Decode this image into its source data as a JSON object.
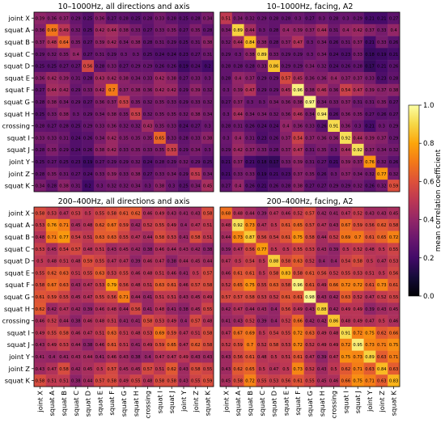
{
  "chart_data": {
    "type": "heatmap",
    "labels": [
      "joint X",
      "squat A",
      "squat B",
      "squat C",
      "squat D",
      "squat E",
      "squat F",
      "squat G",
      "squat H",
      "crossing",
      "squat I",
      "squat J",
      "joint Y",
      "joint Z",
      "squat K"
    ],
    "colorbar": {
      "label": "mean correlation coefficient",
      "range": [
        0.0,
        1.0
      ],
      "ticks": [
        "0.0",
        "0.2",
        "0.4",
        "0.6",
        "0.8",
        "1.0"
      ],
      "colormap": "inferno"
    },
    "panels": [
      {
        "title": "10–1000Hz, all directions and axis",
        "values": [
          [
            0.39,
            0.36,
            0.37,
            0.29,
            0.25,
            0.36,
            0.27,
            0.28,
            0.25,
            0.28,
            0.33,
            0.28,
            0.25,
            0.28,
            0.34
          ],
          [
            0.36,
            0.69,
            0.49,
            0.32,
            0.25,
            0.42,
            0.44,
            0.38,
            0.33,
            0.27,
            0.33,
            0.35,
            0.27,
            0.35,
            0.28
          ],
          [
            0.37,
            0.48,
            0.64,
            0.35,
            0.27,
            0.39,
            0.42,
            0.34,
            0.38,
            0.28,
            0.31,
            0.29,
            0.25,
            0.31,
            0.38
          ],
          [
            0.29,
            0.32,
            0.35,
            0.4,
            0.27,
            0.31,
            0.29,
            0.3,
            0.3,
            0.25,
            0.24,
            0.24,
            0.23,
            0.27,
            0.31
          ],
          [
            0.25,
            0.25,
            0.27,
            0.27,
            0.56,
            0.28,
            0.33,
            0.27,
            0.29,
            0.29,
            0.26,
            0.26,
            0.19,
            0.24,
            0.2
          ],
          [
            0.36,
            0.42,
            0.39,
            0.31,
            0.28,
            0.43,
            0.42,
            0.38,
            0.34,
            0.33,
            0.42,
            0.38,
            0.27,
            0.33,
            0.3
          ],
          [
            0.27,
            0.44,
            0.42,
            0.29,
            0.33,
            0.42,
            0.7,
            0.37,
            0.38,
            0.36,
            0.42,
            0.42,
            0.29,
            0.39,
            0.32
          ],
          [
            0.28,
            0.38,
            0.34,
            0.29,
            0.27,
            0.36,
            0.37,
            0.53,
            0.35,
            0.32,
            0.35,
            0.33,
            0.29,
            0.33,
            0.32
          ],
          [
            0.25,
            0.33,
            0.38,
            0.3,
            0.29,
            0.34,
            0.38,
            0.35,
            0.53,
            0.32,
            0.35,
            0.35,
            0.32,
            0.38,
            0.34
          ],
          [
            0.28,
            0.27,
            0.28,
            0.25,
            0.29,
            0.33,
            0.36,
            0.32,
            0.32,
            0.43,
            0.35,
            0.33,
            0.24,
            0.27,
            0.3
          ],
          [
            0.33,
            0.33,
            0.31,
            0.24,
            0.26,
            0.34,
            0.42,
            0.35,
            0.35,
            0.35,
            0.65,
            0.33,
            0.28,
            0.33,
            0.38
          ],
          [
            0.28,
            0.35,
            0.29,
            0.24,
            0.26,
            0.38,
            0.42,
            0.33,
            0.35,
            0.33,
            0.35,
            0.53,
            0.29,
            0.34,
            0.3
          ],
          [
            0.25,
            0.27,
            0.25,
            0.23,
            0.19,
            0.27,
            0.29,
            0.29,
            0.32,
            0.24,
            0.28,
            0.29,
            0.32,
            0.29,
            0.25
          ],
          [
            0.28,
            0.35,
            0.31,
            0.27,
            0.24,
            0.33,
            0.39,
            0.33,
            0.38,
            0.27,
            0.33,
            0.34,
            0.29,
            0.51,
            0.34
          ],
          [
            0.34,
            0.28,
            0.38,
            0.31,
            0.2,
            0.3,
            0.32,
            0.32,
            0.34,
            0.3,
            0.38,
            0.3,
            0.25,
            0.34,
            0.45
          ]
        ]
      },
      {
        "title": "10–1000Hz, facing, A2",
        "values": [
          [
            0.51,
            0.34,
            0.32,
            0.29,
            0.28,
            0.28,
            0.3,
            0.27,
            0.3,
            0.28,
            0.3,
            0.29,
            0.21,
            0.21,
            0.27
          ],
          [
            0.34,
            0.89,
            0.44,
            0.3,
            0.28,
            0.4,
            0.39,
            0.37,
            0.44,
            0.31,
            0.4,
            0.42,
            0.37,
            0.33,
            0.4
          ],
          [
            0.32,
            0.44,
            0.84,
            0.38,
            0.28,
            0.37,
            0.47,
            0.3,
            0.34,
            0.26,
            0.31,
            0.37,
            0.21,
            0.33,
            0.26
          ],
          [
            0.29,
            0.3,
            0.38,
            0.89,
            0.33,
            0.29,
            0.29,
            0.3,
            0.34,
            0.24,
            0.23,
            0.33,
            0.18,
            0.19,
            0.21
          ],
          [
            0.28,
            0.28,
            0.28,
            0.33,
            0.86,
            0.29,
            0.29,
            0.34,
            0.32,
            0.24,
            0.26,
            0.28,
            0.17,
            0.21,
            0.26
          ],
          [
            0.28,
            0.4,
            0.37,
            0.29,
            0.29,
            0.57,
            0.45,
            0.36,
            0.36,
            0.4,
            0.37,
            0.37,
            0.33,
            0.23,
            0.28
          ],
          [
            0.3,
            0.39,
            0.47,
            0.29,
            0.29,
            0.45,
            0.96,
            0.38,
            0.46,
            0.36,
            0.54,
            0.47,
            0.39,
            0.37,
            0.38
          ],
          [
            0.27,
            0.37,
            0.3,
            0.3,
            0.34,
            0.36,
            0.38,
            0.97,
            0.34,
            0.33,
            0.37,
            0.31,
            0.31,
            0.35,
            0.27
          ],
          [
            0.3,
            0.44,
            0.34,
            0.34,
            0.32,
            0.36,
            0.46,
            0.34,
            0.94,
            0.26,
            0.36,
            0.35,
            0.27,
            0.26,
            0.27
          ],
          [
            0.28,
            0.31,
            0.26,
            0.24,
            0.24,
            0.4,
            0.36,
            0.33,
            0.26,
            0.91,
            0.36,
            0.3,
            0.21,
            0.3,
            0.29
          ],
          [
            0.3,
            0.4,
            0.31,
            0.23,
            0.26,
            0.37,
            0.54,
            0.37,
            0.36,
            0.36,
            0.92,
            0.44,
            0.39,
            0.37,
            0.29
          ],
          [
            0.29,
            0.42,
            0.37,
            0.33,
            0.28,
            0.37,
            0.47,
            0.31,
            0.35,
            0.3,
            0.44,
            0.92,
            0.37,
            0.34,
            0.32
          ],
          [
            0.21,
            0.37,
            0.21,
            0.18,
            0.17,
            0.33,
            0.39,
            0.31,
            0.27,
            0.21,
            0.39,
            0.37,
            0.76,
            0.32,
            0.26
          ],
          [
            0.21,
            0.33,
            0.33,
            0.19,
            0.21,
            0.23,
            0.37,
            0.35,
            0.26,
            0.3,
            0.37,
            0.34,
            0.32,
            0.77,
            0.32
          ],
          [
            0.27,
            0.4,
            0.26,
            0.21,
            0.26,
            0.28,
            0.38,
            0.27,
            0.27,
            0.29,
            0.29,
            0.32,
            0.26,
            0.32,
            0.59
          ]
        ]
      },
      {
        "title": "200–400Hz, all directions and axis",
        "values": [
          [
            0.58,
            0.53,
            0.47,
            0.53,
            0.5,
            0.55,
            0.58,
            0.61,
            0.62,
            0.46,
            0.49,
            0.43,
            0.41,
            0.43,
            0.58
          ],
          [
            0.53,
            0.76,
            0.71,
            0.45,
            0.48,
            0.62,
            0.67,
            0.59,
            0.42,
            0.52,
            0.55,
            0.49,
            0.4,
            0.47,
            0.51
          ],
          [
            0.48,
            0.71,
            0.77,
            0.54,
            0.51,
            0.63,
            0.63,
            0.55,
            0.47,
            0.44,
            0.58,
            0.53,
            0.41,
            0.58,
            0.51
          ],
          [
            0.53,
            0.45,
            0.54,
            0.57,
            0.48,
            0.51,
            0.43,
            0.45,
            0.42,
            0.38,
            0.46,
            0.44,
            0.43,
            0.42,
            0.38
          ],
          [
            0.5,
            0.48,
            0.51,
            0.48,
            0.59,
            0.55,
            0.47,
            0.47,
            0.39,
            0.46,
            0.47,
            0.38,
            0.44,
            0.45,
            0.44
          ],
          [
            0.55,
            0.62,
            0.63,
            0.51,
            0.55,
            0.63,
            0.53,
            0.55,
            0.46,
            0.48,
            0.51,
            0.46,
            0.41,
            0.5,
            0.57
          ],
          [
            0.58,
            0.67,
            0.63,
            0.43,
            0.47,
            0.53,
            0.79,
            0.56,
            0.48,
            0.51,
            0.63,
            0.61,
            0.46,
            0.57,
            0.58
          ],
          [
            0.61,
            0.59,
            0.55,
            0.45,
            0.47,
            0.55,
            0.56,
            0.71,
            0.44,
            0.41,
            0.51,
            0.51,
            0.43,
            0.45,
            0.49
          ],
          [
            0.62,
            0.42,
            0.47,
            0.42,
            0.39,
            0.46,
            0.48,
            0.44,
            0.56,
            0.41,
            0.48,
            0.41,
            0.38,
            0.45,
            0.55
          ],
          [
            0.46,
            0.52,
            0.44,
            0.38,
            0.46,
            0.48,
            0.51,
            0.41,
            0.41,
            0.58,
            0.53,
            0.49,
            0.4,
            0.57,
            0.48
          ],
          [
            0.49,
            0.55,
            0.58,
            0.46,
            0.47,
            0.51,
            0.63,
            0.51,
            0.48,
            0.53,
            0.69,
            0.59,
            0.47,
            0.51,
            0.58
          ],
          [
            0.43,
            0.49,
            0.53,
            0.44,
            0.38,
            0.46,
            0.61,
            0.51,
            0.41,
            0.49,
            0.59,
            0.65,
            0.47,
            0.62,
            0.58
          ],
          [
            0.41,
            0.4,
            0.41,
            0.43,
            0.44,
            0.41,
            0.46,
            0.43,
            0.38,
            0.4,
            0.47,
            0.47,
            0.49,
            0.43,
            0.43
          ],
          [
            0.43,
            0.47,
            0.58,
            0.42,
            0.45,
            0.5,
            0.57,
            0.45,
            0.45,
            0.57,
            0.51,
            0.62,
            0.43,
            0.58,
            0.55
          ],
          [
            0.58,
            0.51,
            0.51,
            0.38,
            0.44,
            0.57,
            0.58,
            0.49,
            0.55,
            0.48,
            0.58,
            0.58,
            0.43,
            0.55,
            0.59
          ]
        ]
      },
      {
        "title": "200–400Hz, facing, A2",
        "values": [
          [
            0.68,
            0.48,
            0.44,
            0.39,
            0.47,
            0.46,
            0.52,
            0.57,
            0.42,
            0.41,
            0.47,
            0.52,
            0.43,
            0.43,
            0.45
          ],
          [
            0.48,
            0.92,
            0.73,
            0.47,
            0.5,
            0.61,
            0.65,
            0.57,
            0.47,
            0.43,
            0.67,
            0.59,
            0.56,
            0.62,
            0.58
          ],
          [
            0.44,
            0.73,
            0.87,
            0.56,
            0.54,
            0.61,
            0.75,
            0.58,
            0.44,
            0.52,
            0.69,
            0.7,
            0.61,
            0.65,
            0.72
          ],
          [
            0.39,
            0.47,
            0.56,
            0.77,
            0.5,
            0.5,
            0.55,
            0.53,
            0.43,
            0.39,
            0.5,
            0.52,
            0.48,
            0.5,
            0.55
          ],
          [
            0.47,
            0.5,
            0.54,
            0.5,
            0.88,
            0.58,
            0.63,
            0.52,
            0.4,
            0.4,
            0.54,
            0.58,
            0.5,
            0.47,
            0.53
          ],
          [
            0.46,
            0.61,
            0.61,
            0.5,
            0.58,
            0.83,
            0.58,
            0.61,
            0.56,
            0.52,
            0.55,
            0.53,
            0.51,
            0.5,
            0.56
          ],
          [
            0.52,
            0.65,
            0.75,
            0.55,
            0.63,
            0.58,
            0.96,
            0.61,
            0.49,
            0.66,
            0.72,
            0.72,
            0.61,
            0.73,
            0.61
          ],
          [
            0.57,
            0.57,
            0.58,
            0.53,
            0.52,
            0.61,
            0.61,
            0.98,
            0.43,
            0.42,
            0.63,
            0.52,
            0.47,
            0.52,
            0.55
          ],
          [
            0.42,
            0.47,
            0.44,
            0.43,
            0.4,
            0.56,
            0.49,
            0.43,
            0.88,
            0.42,
            0.49,
            0.49,
            0.39,
            0.43,
            0.45
          ],
          [
            0.41,
            0.43,
            0.52,
            0.39,
            0.4,
            0.52,
            0.66,
            0.42,
            0.42,
            0.86,
            0.48,
            0.49,
            0.47,
            0.5,
            0.46
          ],
          [
            0.47,
            0.67,
            0.69,
            0.5,
            0.54,
            0.55,
            0.72,
            0.63,
            0.49,
            0.48,
            0.91,
            0.72,
            0.75,
            0.62,
            0.66
          ],
          [
            0.52,
            0.59,
            0.7,
            0.52,
            0.58,
            0.53,
            0.72,
            0.52,
            0.49,
            0.49,
            0.72,
            0.95,
            0.73,
            0.71,
            0.75
          ],
          [
            0.43,
            0.56,
            0.61,
            0.48,
            0.5,
            0.51,
            0.61,
            0.47,
            0.39,
            0.47,
            0.75,
            0.73,
            0.89,
            0.63,
            0.71
          ],
          [
            0.43,
            0.62,
            0.65,
            0.5,
            0.47,
            0.5,
            0.73,
            0.52,
            0.43,
            0.5,
            0.62,
            0.71,
            0.63,
            0.84,
            0.63
          ],
          [
            0.45,
            0.58,
            0.72,
            0.55,
            0.53,
            0.56,
            0.61,
            0.55,
            0.45,
            0.46,
            0.66,
            0.75,
            0.71,
            0.63,
            0.83
          ]
        ]
      }
    ]
  }
}
